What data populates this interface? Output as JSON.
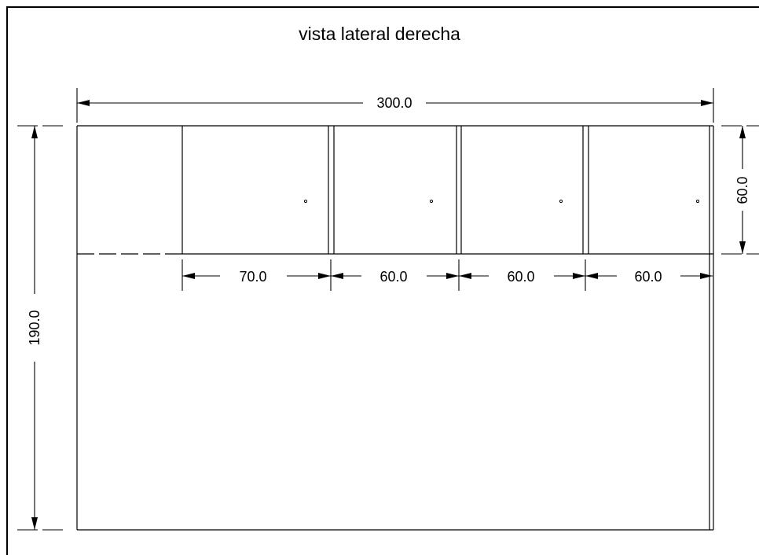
{
  "title": "vista lateral derecha",
  "dimensions": {
    "overall_width": "300.0",
    "overall_height": "190.0",
    "cabinet_height": "60.0",
    "segment_1": "70.0",
    "segment_2": "60.0",
    "segment_3": "60.0",
    "segment_4": "60.0"
  },
  "colors": {
    "line": "#000000",
    "background": "#ffffff"
  }
}
